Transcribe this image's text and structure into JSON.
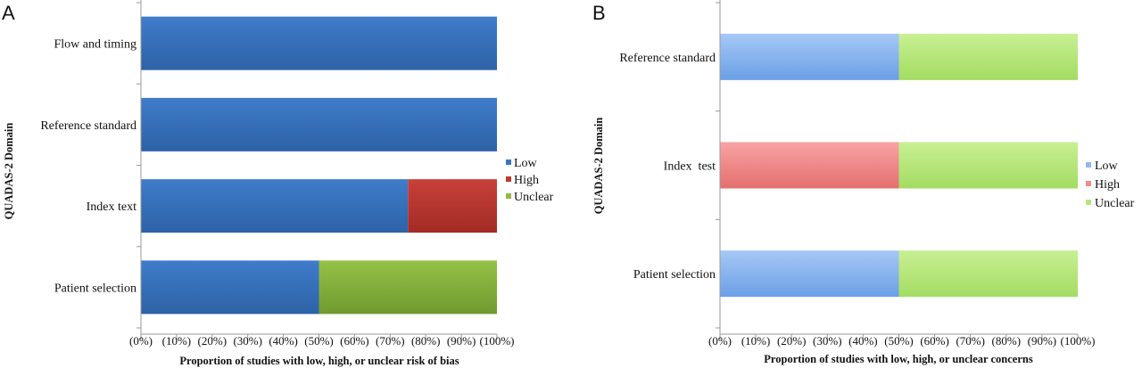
{
  "chart_data": [
    {
      "panel": "A",
      "type": "bar",
      "orientation": "horizontal",
      "stacked": true,
      "categories": [
        "Patient selection",
        "Index text",
        "Reference standard",
        "Flow and timing"
      ],
      "series": [
        {
          "name": "Low",
          "values": [
            50,
            75,
            100,
            100
          ],
          "color": "#3a75c4"
        },
        {
          "name": "High",
          "values": [
            0,
            25,
            0,
            0
          ],
          "color": "#c0392b"
        },
        {
          "name": "Unclear",
          "values": [
            50,
            0,
            0,
            0
          ],
          "color": "#8cbb3f"
        }
      ],
      "xlim": [
        0,
        100
      ],
      "xticks": [
        "(0%)",
        "(10%)",
        "(20%)",
        "(30%)",
        "(40%)",
        "(50%)",
        "(60%)",
        "(70%)",
        "(80%)",
        "(90%)",
        "(100%)"
      ],
      "xlabel": "Proportion of studies with low, high, or unclear risk of bias",
      "ylabel": "QUADAS-2 Domain",
      "legend_position": "right",
      "grid": false
    },
    {
      "panel": "B",
      "type": "bar",
      "orientation": "horizontal",
      "stacked": true,
      "categories": [
        "Patient selection",
        "Index  test",
        "Reference standard"
      ],
      "series": [
        {
          "name": "Low",
          "values": [
            50,
            0,
            50
          ],
          "color": "#8fb8ef"
        },
        {
          "name": "High",
          "values": [
            0,
            50,
            0
          ],
          "color": "#f08c8c"
        },
        {
          "name": "Unclear",
          "values": [
            50,
            50,
            50
          ],
          "color": "#b4e67a"
        }
      ],
      "xlim": [
        0,
        100
      ],
      "xticks": [
        "(0%)",
        "(10%)",
        "(20%)",
        "(30%)",
        "(40%)",
        "(50%)",
        "(60%)",
        "(70%)",
        "(80%)",
        "(90%)",
        "(100%)"
      ],
      "xlabel": "Proportion of studies with low, high, or unclear concerns",
      "ylabel": "QUADAS-2 Domain",
      "legend_position": "right",
      "grid": false
    }
  ]
}
